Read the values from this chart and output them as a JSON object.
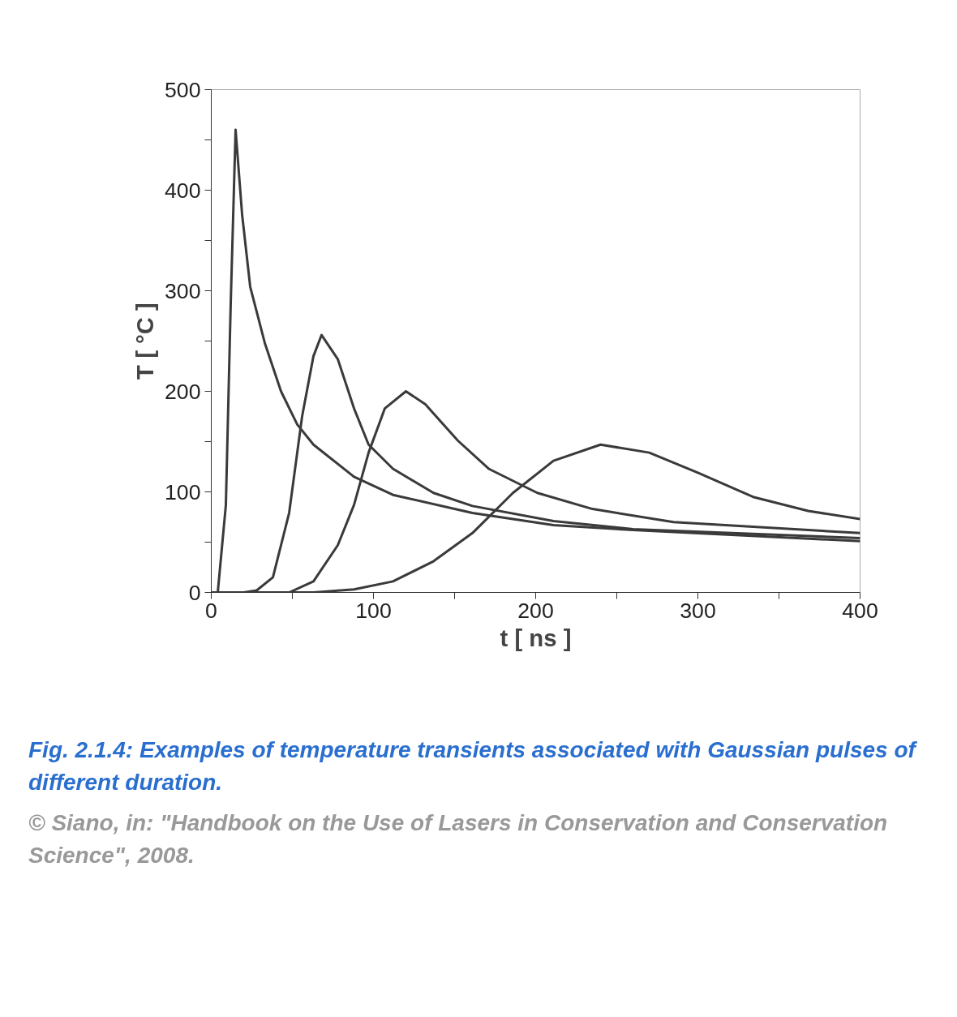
{
  "chart_data": {
    "type": "line",
    "xlabel": "t [ ns ]",
    "ylabel": "T [ °C ]",
    "xlim": [
      0,
      400
    ],
    "ylim": [
      0,
      500
    ],
    "xticks": [
      0,
      {
        "value": 50,
        "label": null
      },
      100,
      {
        "value": 150,
        "label": null
      },
      200,
      {
        "value": 250,
        "label": null
      },
      300,
      {
        "value": 350,
        "label": null
      },
      400
    ],
    "yticks": [
      0,
      {
        "value": 50,
        "label": null
      },
      100,
      {
        "value": 150,
        "label": null
      },
      200,
      {
        "value": 250,
        "label": null
      },
      300,
      {
        "value": 350,
        "label": null
      },
      400,
      {
        "value": 450,
        "label": null
      },
      500
    ],
    "grid": false,
    "marker": "none",
    "line_style": "solid",
    "series": [
      {
        "color": "#3a3a3a",
        "x": [
          0,
          4,
          9,
          12,
          15,
          19,
          24,
          33,
          43,
          53,
          63,
          88,
          112,
          161,
          211,
          260,
          400
        ],
        "values": [
          0,
          0,
          87,
          288,
          460,
          376,
          304,
          248,
          200,
          167,
          147,
          115,
          97,
          79,
          67,
          62,
          51
        ]
      },
      {
        "color": "#3a3a3a",
        "x": [
          0,
          20,
          28,
          38,
          48,
          56,
          63,
          68,
          78,
          88,
          97,
          112,
          137,
          161,
          211,
          260,
          400
        ],
        "values": [
          0,
          0,
          2,
          15,
          79,
          175,
          235,
          256,
          232,
          183,
          147,
          123,
          99,
          86,
          71,
          63,
          54
        ]
      },
      {
        "color": "#3a3a3a",
        "x": [
          0,
          48,
          63,
          78,
          88,
          97,
          107,
          120,
          132,
          152,
          171,
          201,
          235,
          285,
          400
        ],
        "values": [
          0,
          0,
          11,
          47,
          87,
          139,
          183,
          200,
          187,
          151,
          123,
          99,
          83,
          70,
          59
        ]
      },
      {
        "color": "#3a3a3a",
        "x": [
          0,
          63,
          88,
          112,
          137,
          161,
          186,
          211,
          240,
          270,
          300,
          334,
          368,
          400
        ],
        "values": [
          0,
          0,
          3,
          11,
          31,
          59,
          99,
          131,
          147,
          139,
          119,
          95,
          81,
          73
        ]
      }
    ],
    "annotations": [
      "Fig. 2.1.4: Examples of temperature transients associated with Gaussian pulses of different duration.",
      "© Siano, in: \"Handbook on the Use of Lasers in Conservation and Conservation Science\", 2008."
    ]
  }
}
